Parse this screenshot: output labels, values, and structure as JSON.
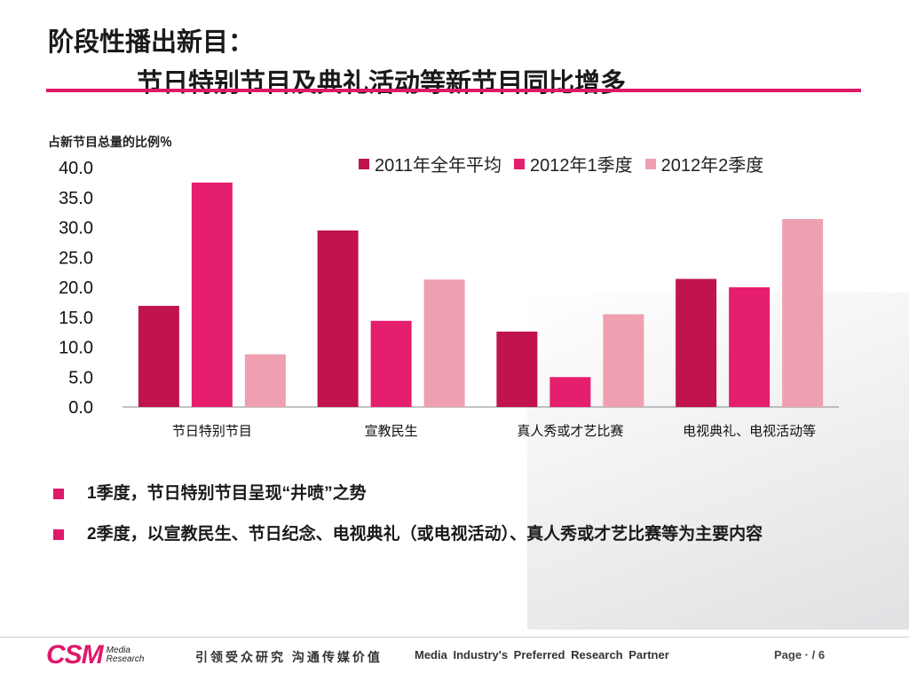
{
  "title": {
    "line1": "阶段性播出新目：",
    "line2": "节日特别节目及典礼活动等新节目同比增多"
  },
  "chart_data": {
    "type": "bar",
    "title": "",
    "ylabel": "占新节目总量的比例％",
    "xlabel": "",
    "ylim": [
      0,
      40
    ],
    "yticks": [
      "0.0",
      "5.0",
      "10.0",
      "15.0",
      "20.0",
      "25.0",
      "30.0",
      "35.0",
      "40.0"
    ],
    "categories": [
      "节日特别节目",
      "宣教民生",
      "真人秀或才艺比赛",
      "电视典礼、电视活动等"
    ],
    "series": [
      {
        "name": "2011年全年平均",
        "color": "#c0134f",
        "values": [
          16.9,
          29.5,
          12.6,
          21.4
        ]
      },
      {
        "name": "2012年1季度",
        "color": "#e61e6e",
        "values": [
          37.5,
          14.4,
          5.0,
          20.0
        ]
      },
      {
        "name": "2012年2季度",
        "color": "#eea0b0",
        "values": [
          8.8,
          21.3,
          15.5,
          31.4
        ]
      }
    ],
    "legend_position": "top-right",
    "grid": false
  },
  "bullets": [
    "1季度，节日特别节目呈现“井喷”之势",
    "2季度，以宣教民生、节日纪念、电视典礼（或电视活动）、真人秀或才艺比赛等为主要内容"
  ],
  "footer": {
    "logo": "CSM",
    "logo_sub1": "Media",
    "logo_sub2": "Research",
    "slogan": "引领受众研究 沟通传媒价值",
    "tagline": "Media Industry's Preferred Research Partner",
    "page": "Page · / 6"
  },
  "colors": {
    "accent": "#e0186a"
  }
}
